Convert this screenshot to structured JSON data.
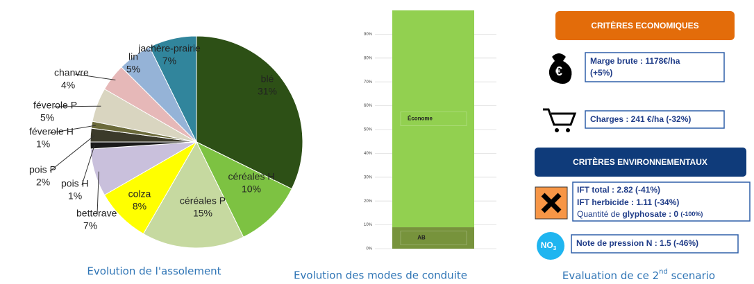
{
  "chart_data": [
    {
      "type": "pie",
      "title": "Evolution de l'assolement",
      "categories": [
        "blé",
        "céréales H",
        "céréales P",
        "colza",
        "betterave",
        "pois H",
        "pois P",
        "féverole H",
        "féverole P",
        "chanvre",
        "lin",
        "jachère-prairie"
      ],
      "values": [
        31,
        10,
        15,
        8,
        7,
        1,
        2,
        1,
        5,
        4,
        5,
        7
      ],
      "value_labels": [
        "31%",
        "10%",
        "15%",
        "8%",
        "7%",
        "1%",
        "2%",
        "1%",
        "5%",
        "4%",
        "5%",
        "7%"
      ],
      "colors": [
        "#2d5016",
        "#7dc242",
        "#c6d9a0",
        "#ffff00",
        "#c9c0dc",
        "#1a1a1a",
        "#3b3a2a",
        "#6b6a3a",
        "#d9d5c0",
        "#e6b8b8",
        "#95b3d7",
        "#31859c"
      ]
    },
    {
      "type": "bar",
      "stacked": true,
      "title": "Evolution des modes de conduite",
      "categories": [
        null
      ],
      "series": [
        {
          "name": "AB",
          "color": "#77933c",
          "values": [
            9
          ]
        },
        {
          "name": "Économe",
          "color": "#92d050",
          "values": [
            91
          ]
        }
      ],
      "ylim": [
        0,
        100
      ],
      "yticks": [
        {
          "value": 0,
          "label": "0%"
        },
        {
          "value": 10,
          "label": "10%"
        },
        {
          "value": 20,
          "label": "20%"
        },
        {
          "value": 30,
          "label": "30%"
        },
        {
          "value": 40,
          "label": "40%"
        },
        {
          "value": 50,
          "label": "50%"
        },
        {
          "value": 60,
          "label": "60%"
        },
        {
          "value": 70,
          "label": "70%"
        },
        {
          "value": 80,
          "label": "80%"
        },
        {
          "value": 90,
          "label": "90%"
        }
      ],
      "grid": true
    }
  ],
  "panel": {
    "economic_header": "CRITÈRES ECONOMIQUES",
    "euro_icon": "€",
    "marge_line1": "Marge brute : 1178€/ha",
    "marge_line2": "(+5%)",
    "charges": "Charges : 241 €/ha (-32%)",
    "env_header": "CRITÈRES ENVIRONNEMENTAUX",
    "ift_total": "IFT total : 2.82 (-41%)",
    "ift_herbicide": "IFT herbicide : 1.11 (-34%)",
    "glyphosate": [
      "Quantité de ",
      "glyphosate",
      " : 0 ",
      "(-100%)"
    ],
    "no3_icon": [
      "NO",
      "3"
    ],
    "pression": "Note de pression N : 1.5 (-46%)",
    "caption": [
      "Evaluation de ce 2",
      "nd",
      " scenario"
    ]
  }
}
